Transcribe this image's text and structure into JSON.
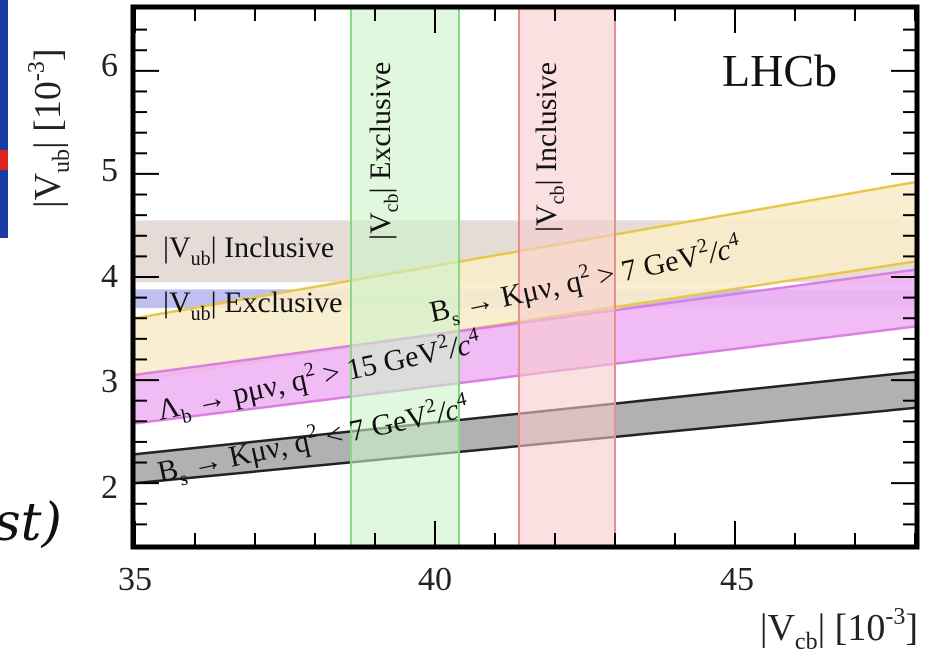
{
  "chart_data": {
    "type": "area",
    "xlabel": "|V_cb| [10^-3]",
    "ylabel": "|V_ub| [10^-3]",
    "xlim": [
      35,
      48
    ],
    "ylim": [
      1.4,
      6.6
    ],
    "x_ticks": [
      35,
      40,
      45
    ],
    "y_ticks": [
      2,
      3,
      4,
      5,
      6
    ],
    "grid": false,
    "annotations": [
      "LHCb"
    ],
    "horizontal_bands": [
      {
        "name": "|V_ub| Inclusive",
        "y_low": 3.95,
        "y_high": 4.55,
        "color": "#e2d6d0"
      },
      {
        "name": "|V_ub| Exclusive",
        "y_low": 3.7,
        "y_high": 3.88,
        "color": "#b4b4ee"
      }
    ],
    "vertical_bands": [
      {
        "name": "|V_cb| Exclusive",
        "x_low": 38.6,
        "x_high": 40.4,
        "color": "#ccf4c8",
        "edge": "#88d888"
      },
      {
        "name": "|V_cb| Inclusive",
        "x_low": 41.4,
        "x_high": 43.0,
        "color": "#f7cbcb",
        "edge": "#e89090"
      }
    ],
    "diagonal_bands": [
      {
        "name": "B_s → Kμν, q² > 7 GeV²/c⁴",
        "x": [
          35,
          48
        ],
        "y_low": [
          3.0,
          4.15
        ],
        "y_high": [
          3.6,
          4.92
        ],
        "color": "#faeccb",
        "edge": "#e8c648"
      },
      {
        "name": "Λ_b → pμν, q² > 15 GeV²/c⁴",
        "x": [
          35,
          48
        ],
        "y_low": [
          2.58,
          3.52
        ],
        "y_high": [
          3.05,
          4.07
        ],
        "color": "#f0b4f4",
        "edge": "#d880e0"
      },
      {
        "name": "B_s → Kμν, q² < 7 GeV²/c⁴",
        "x": [
          35,
          48
        ],
        "y_low": [
          2.0,
          2.73
        ],
        "y_high": [
          2.28,
          3.08
        ],
        "color": "#a8a8a8",
        "edge": "#222222"
      }
    ]
  },
  "labels": {
    "x_tick_35": "35",
    "x_tick_40": "40",
    "x_tick_45": "45",
    "y_tick_2": "2",
    "y_tick_3": "3",
    "y_tick_4": "4",
    "y_tick_5": "5",
    "y_tick_6": "6",
    "logo": "LHCb",
    "vub_incl_main": "|V",
    "vub_incl_sub": "ub",
    "vub_incl_tail": "| Inclusive",
    "vub_excl_main": "|V",
    "vub_excl_sub": "ub",
    "vub_excl_tail": "| Exclusive",
    "vcb_excl_main": "|V",
    "vcb_excl_sub": "cb",
    "vcb_excl_tail": "| Exclusive",
    "vcb_incl_main": "|V",
    "vcb_incl_sub": "cb",
    "vcb_incl_tail": "| Inclusive",
    "bs_high_main": "B",
    "bs_high_sub": "s",
    "bs_high_tail": " → Kμν, q",
    "bs_high_sup": "2",
    "bs_high_tail2": " > 7 GeV",
    "bs_high_sup2": "2",
    "bs_high_tail3": "/c",
    "bs_high_sup3": "4",
    "lb_main": "Λ",
    "lb_sub": "b",
    "lb_tail": " → pμν, q",
    "lb_sup": "2",
    "lb_tail2": " > 15 GeV",
    "lb_sup2": "2",
    "lb_tail3": "/c",
    "lb_sup3": "4",
    "bs_low_main": "B",
    "bs_low_sub": "s",
    "bs_low_tail": " → Kμν, q",
    "bs_low_sup": "2",
    "bs_low_tail2": " < 7 GeV",
    "bs_low_sup2": "2",
    "bs_low_tail3": "/c",
    "bs_low_sup3": "4",
    "xlabel_main": "|V",
    "xlabel_sub": "cb",
    "xlabel_tail": "| [10",
    "xlabel_sup": "-3",
    "xlabel_end": "]",
    "ylabel_main": "|V",
    "ylabel_sub": "ub",
    "ylabel_tail": "| [10",
    "ylabel_sup": "-3",
    "ylabel_end": "]",
    "crop_text": "st)"
  }
}
